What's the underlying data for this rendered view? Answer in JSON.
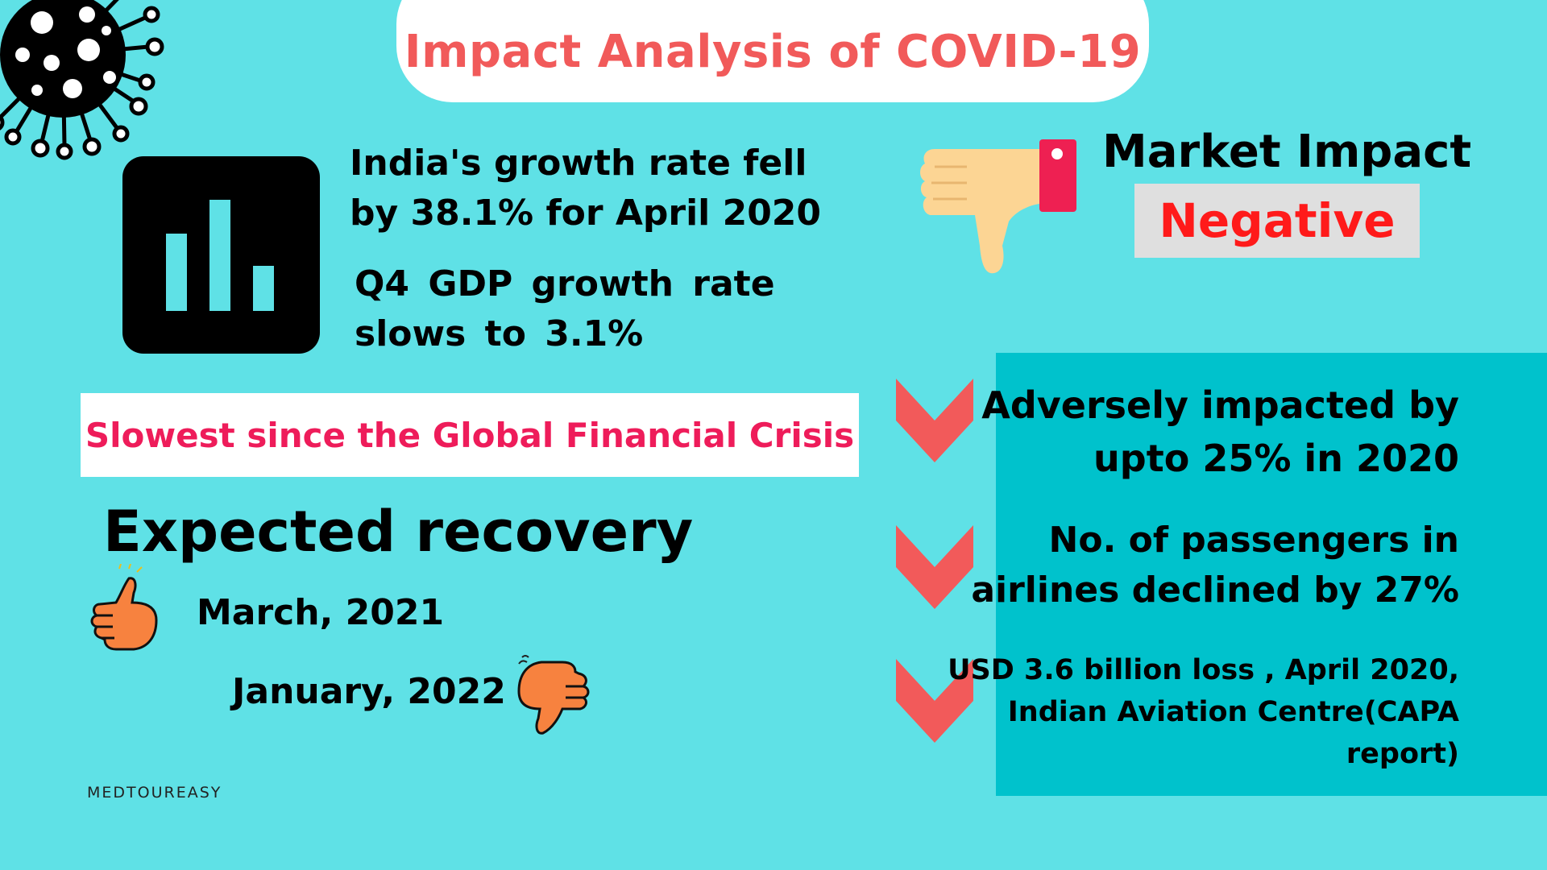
{
  "title": "Impact Analysis of COVID-19",
  "growth": {
    "line1": "India's growth rate fell",
    "line2": "by 38.1% for April 2020",
    "line3": "Q4 GDP growth rate",
    "line4": "slows to 3.1%"
  },
  "slowest_banner": "Slowest since the Global Financial Crisis",
  "recovery": {
    "title": "Expected recovery",
    "optimistic": "March, 2021",
    "pessimistic": "January, 2022"
  },
  "brand": "MEDTOUREASY",
  "market": {
    "title": "Market Impact",
    "verdict": "Negative"
  },
  "impacts": {
    "item1_line1": "Adversely impacted by",
    "item1_line2": "upto 25% in 2020",
    "item2_line1": "No. of passengers in",
    "item2_line2": "airlines declined by 27%",
    "item3_line1": "USD 3.6 billion loss , April 2020,",
    "item3_line2": "Indian Aviation Centre(CAPA",
    "item3_line3": "report)"
  },
  "colors": {
    "background": "#5fe1e6",
    "title": "#f15a5a",
    "banner_text": "#ee1c5a",
    "negative": "#ff1a1a",
    "panel": "#00c2cc",
    "chevron": "#f25a5a",
    "thumb_orange": "#f7823f"
  },
  "icons": [
    "virus-icon",
    "bar-chart-icon",
    "thumbs-down-icon",
    "chevron-down-icon",
    "thumbs-up-icon"
  ]
}
